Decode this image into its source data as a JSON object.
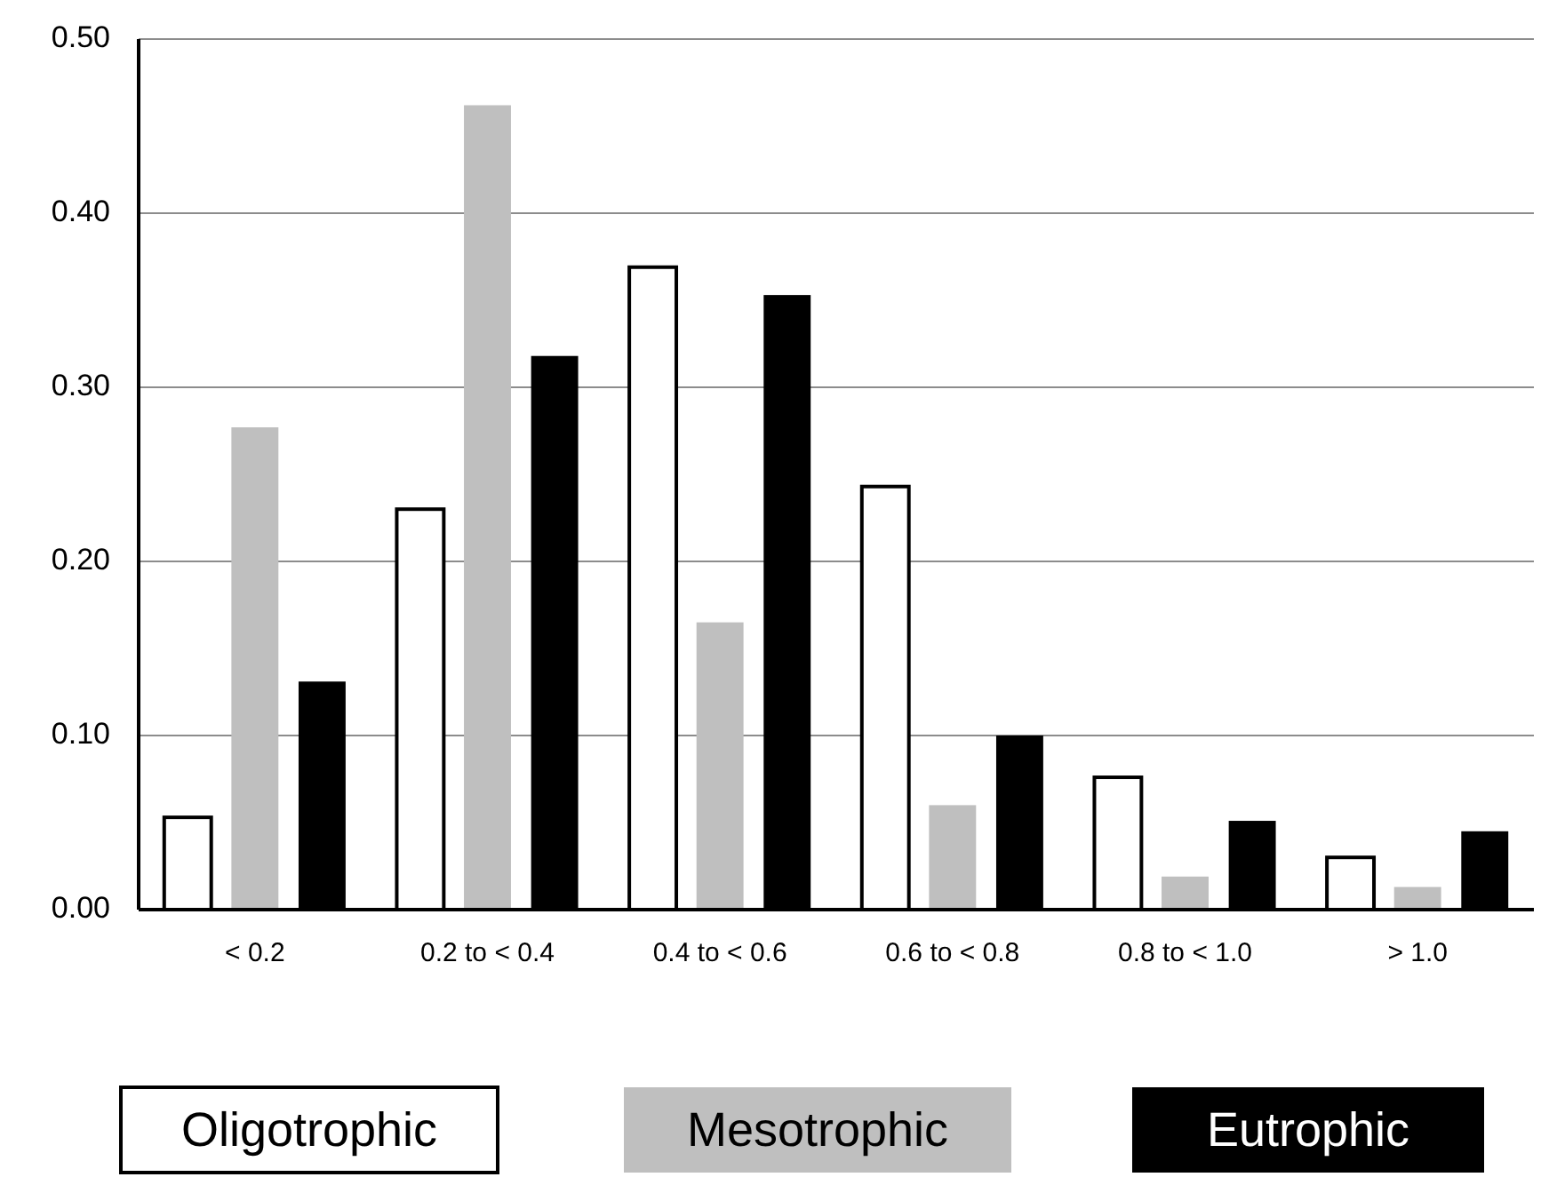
{
  "chart_data": {
    "type": "bar",
    "categories": [
      "< 0.2",
      "0.2 to < 0.4",
      "0.4 to < 0.6",
      "0.6 to < 0.8",
      "0.8 to < 1.0",
      "> 1.0"
    ],
    "series": [
      {
        "name": "Oligotrophic",
        "color": "#ffffff",
        "values": [
          0.053,
          0.23,
          0.369,
          0.243,
          0.076,
          0.03
        ]
      },
      {
        "name": "Mesotrophic",
        "color": "#bfbfbf",
        "values": [
          0.277,
          0.462,
          0.165,
          0.06,
          0.019,
          0.013
        ]
      },
      {
        "name": "Eutrophic",
        "color": "#000000",
        "values": [
          0.131,
          0.318,
          0.353,
          0.1,
          0.051,
          0.045
        ]
      }
    ],
    "ylim": [
      0,
      0.5
    ],
    "yticks": [
      {
        "value": 0,
        "label": "0.00"
      },
      {
        "value": 0.1,
        "label": "0.10"
      },
      {
        "value": 0.2,
        "label": "0.20"
      },
      {
        "value": 0.3,
        "label": "0.30"
      },
      {
        "value": 0.4,
        "label": "0.40"
      },
      {
        "value": 0.5,
        "label": "0.50"
      }
    ],
    "grid": "y",
    "legend": "bottom"
  }
}
